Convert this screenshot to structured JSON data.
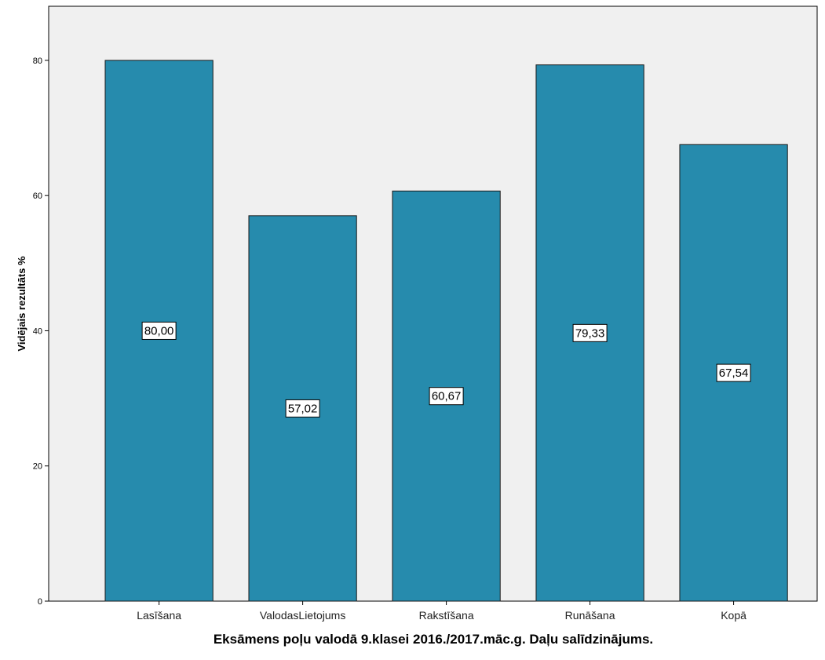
{
  "chart_data": {
    "type": "bar",
    "categories": [
      "Lasīšana",
      "ValodasLietojums",
      "Rakstīšana",
      "Runāšana",
      "Kopā"
    ],
    "values": [
      80.0,
      57.02,
      60.67,
      79.33,
      67.54
    ],
    "data_labels": [
      "80,00",
      "57,02",
      "60,67",
      "79,33",
      "67,54"
    ],
    "title": "",
    "xlabel": "Eksāmens poļu valodā 9.klasei 2016./2017.māc.g. Daļu salīdzinājums.",
    "ylabel": "Vidējais rezultāts %",
    "ylim": [
      0,
      88
    ],
    "yticks": [
      0,
      20,
      40,
      60,
      80
    ],
    "grid": false,
    "colors": {
      "bar": "#268BAD",
      "bar_stroke": "#1a1a1a",
      "plot_background": "#F0F0F0"
    }
  }
}
